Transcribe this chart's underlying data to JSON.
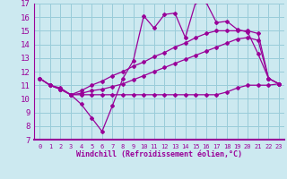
{
  "xlabel": "Windchill (Refroidissement éolien,°C)",
  "xlim": [
    -0.5,
    23.5
  ],
  "ylim": [
    7,
    17
  ],
  "xticks": [
    0,
    1,
    2,
    3,
    4,
    5,
    6,
    7,
    8,
    9,
    10,
    11,
    12,
    13,
    14,
    15,
    16,
    17,
    18,
    19,
    20,
    21,
    22,
    23
  ],
  "yticks": [
    7,
    8,
    9,
    10,
    11,
    12,
    13,
    14,
    15,
    16,
    17
  ],
  "bg_color": "#cce9f0",
  "grid_color": "#99ccd9",
  "line_color": "#990099",
  "line1_x": [
    0,
    1,
    2,
    3,
    4,
    5,
    6,
    7,
    8,
    9,
    10,
    11,
    12,
    13,
    14,
    15,
    16,
    17,
    18,
    19,
    20,
    21,
    22,
    23
  ],
  "line1_y": [
    11.5,
    11.0,
    10.7,
    10.3,
    9.6,
    8.6,
    7.6,
    9.5,
    11.5,
    12.8,
    16.1,
    15.2,
    16.2,
    16.3,
    14.5,
    17.1,
    17.1,
    15.6,
    15.7,
    15.1,
    14.9,
    13.3,
    11.5,
    11.1
  ],
  "line2_x": [
    0,
    1,
    2,
    3,
    4,
    5,
    6,
    7,
    8,
    9,
    10,
    11,
    12,
    13,
    14,
    15,
    16,
    17,
    18,
    19,
    20,
    21,
    22,
    23
  ],
  "line2_y": [
    11.5,
    11.0,
    10.8,
    10.3,
    10.3,
    10.3,
    10.3,
    10.3,
    10.3,
    10.3,
    10.3,
    10.3,
    10.3,
    10.3,
    10.3,
    10.3,
    10.3,
    10.3,
    10.5,
    10.8,
    11.0,
    11.0,
    11.0,
    11.1
  ],
  "line3_x": [
    0,
    1,
    2,
    3,
    4,
    5,
    6,
    7,
    8,
    9,
    10,
    11,
    12,
    13,
    14,
    15,
    16,
    17,
    18,
    19,
    20,
    21,
    22,
    23
  ],
  "line3_y": [
    11.5,
    11.0,
    10.7,
    10.3,
    10.6,
    11.0,
    11.3,
    11.7,
    12.0,
    12.4,
    12.7,
    13.1,
    13.4,
    13.8,
    14.1,
    14.5,
    14.8,
    15.0,
    15.0,
    15.0,
    15.0,
    14.8,
    11.5,
    11.1
  ],
  "line4_x": [
    0,
    1,
    2,
    3,
    4,
    5,
    6,
    7,
    8,
    9,
    10,
    11,
    12,
    13,
    14,
    15,
    16,
    17,
    18,
    19,
    20,
    21,
    22,
    23
  ],
  "line4_y": [
    11.5,
    11.0,
    10.7,
    10.3,
    10.4,
    10.6,
    10.7,
    10.9,
    11.1,
    11.4,
    11.7,
    12.0,
    12.3,
    12.6,
    12.9,
    13.2,
    13.5,
    13.8,
    14.1,
    14.4,
    14.5,
    14.3,
    11.5,
    11.1
  ]
}
